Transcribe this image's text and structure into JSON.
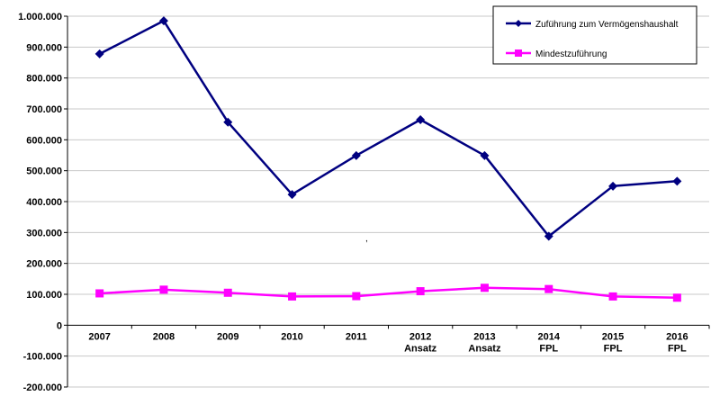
{
  "chart_data": {
    "type": "line",
    "categories": [
      [
        "2007"
      ],
      [
        "2008"
      ],
      [
        "2009"
      ],
      [
        "2010"
      ],
      [
        "2011"
      ],
      [
        "2012",
        "Ansatz"
      ],
      [
        "2013",
        "Ansatz"
      ],
      [
        "2014",
        "FPL"
      ],
      [
        "2015",
        "FPL"
      ],
      [
        "2016",
        "FPL"
      ]
    ],
    "y_tick_labels": [
      "-200.000",
      "-100.000",
      "0",
      "100.000",
      "200.000",
      "300.000",
      "400.000",
      "500.000",
      "600.000",
      "700.000",
      "800.000",
      "900.000",
      "1.000.000"
    ],
    "ylim": [
      -200000,
      1000000
    ],
    "y_tick_step": 100000,
    "grid": true,
    "legend_position": "top-right",
    "series": [
      {
        "name": "Zuführung zum Vermögenshaushalt",
        "color": "#000080",
        "marker": "diamond",
        "values": [
          878000,
          985000,
          657000,
          423000,
          549000,
          665000,
          549000,
          288000,
          450000,
          466000
        ]
      },
      {
        "name": "Mindestzuführung",
        "color": "#ff00ff",
        "marker": "square",
        "values": [
          103000,
          115000,
          105000,
          93000,
          94000,
          110000,
          121000,
          117000,
          93000,
          89000
        ]
      }
    ],
    "annotations": [
      ","
    ]
  }
}
